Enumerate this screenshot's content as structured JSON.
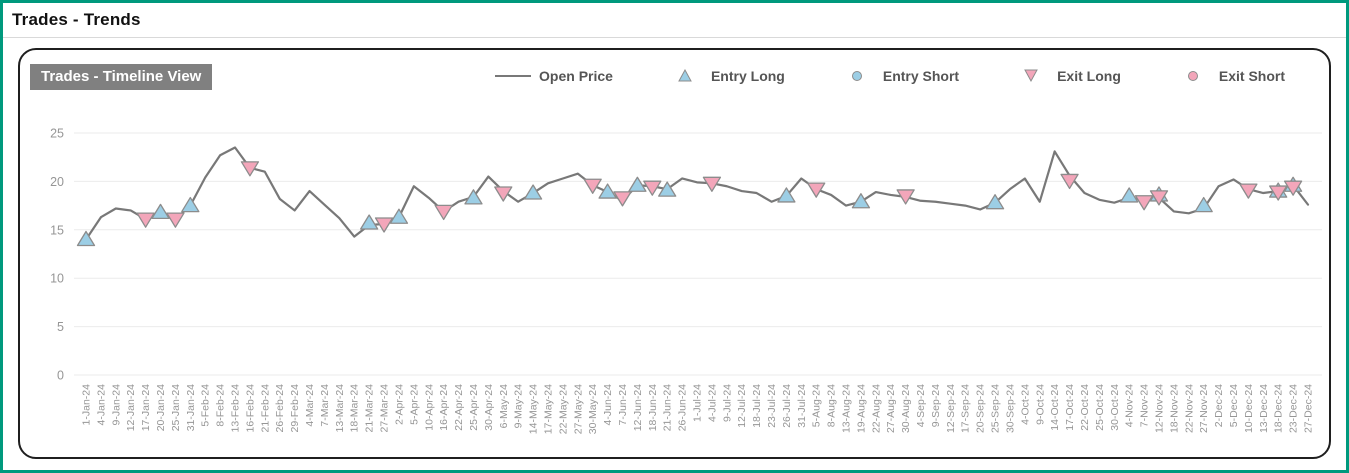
{
  "window": {
    "title": "Trades - Trends"
  },
  "panel": {
    "title": "Trades - Timeline View"
  },
  "legend": [
    {
      "label": "Open Price",
      "swatch": "line",
      "color": "#787878"
    },
    {
      "label": "Entry Long",
      "swatch": "triangle-up",
      "color": "#9cceе5"
    },
    {
      "label": "Entry Short",
      "swatch": "circle",
      "color": "#9ccee5"
    },
    {
      "label": "Exit Long",
      "swatch": "triangle-down",
      "color": "#f3a6ba"
    },
    {
      "label": "Exit Short",
      "swatch": "circle",
      "color": "#f3a6ba"
    }
  ],
  "colors": {
    "frame_border": "#00997d",
    "panel_border": "#1f1f1f",
    "badge_bg": "#808080",
    "badge_text": "#ffffff",
    "line": "#787878",
    "entry_fill": "#9ccee5",
    "exit_fill": "#f3a6ba",
    "marker_stroke": "#8c8c8c",
    "grid": "#ebebeb",
    "axis_text": "#969696",
    "legend_text": "#555555"
  },
  "chart_data": {
    "type": "line",
    "title": "Trades - Timeline View",
    "ylim": [
      0,
      25
    ],
    "yticks": [
      0,
      5,
      10,
      15,
      20,
      25
    ],
    "grid": "horizontal",
    "legend_position": "top",
    "x": [
      "1-Jan-24",
      "4-Jan-24",
      "9-Jan-24",
      "12-Jan-24",
      "17-Jan-24",
      "20-Jan-24",
      "25-Jan-24",
      "31-Jan-24",
      "5-Feb-24",
      "8-Feb-24",
      "13-Feb-24",
      "16-Feb-24",
      "21-Feb-24",
      "26-Feb-24",
      "29-Feb-24",
      "4-Mar-24",
      "7-Mar-24",
      "13-Mar-24",
      "18-Mar-24",
      "21-Mar-24",
      "27-Mar-24",
      "2-Apr-24",
      "5-Apr-24",
      "10-Apr-24",
      "16-Apr-24",
      "22-Apr-24",
      "25-Apr-24",
      "30-Apr-24",
      "6-May-24",
      "9-May-24",
      "14-May-24",
      "17-May-24",
      "22-May-24",
      "27-May-24",
      "30-May-24",
      "4-Jun-24",
      "7-Jun-24",
      "12-Jun-24",
      "18-Jun-24",
      "21-Jun-24",
      "26-Jun-24",
      "1-Jul-24",
      "4-Jul-24",
      "9-Jul-24",
      "12-Jul-24",
      "18-Jul-24",
      "23-Jul-24",
      "26-Jul-24",
      "31-Jul-24",
      "5-Aug-24",
      "8-Aug-24",
      "13-Aug-24",
      "19-Aug-24",
      "22-Aug-24",
      "27-Aug-24",
      "30-Aug-24",
      "4-Sep-24",
      "9-Sep-24",
      "12-Sep-24",
      "17-Sep-24",
      "20-Sep-24",
      "25-Sep-24",
      "30-Sep-24",
      "4-Oct-24",
      "9-Oct-24",
      "14-Oct-24",
      "17-Oct-24",
      "22-Oct-24",
      "25-Oct-24",
      "30-Oct-24",
      "4-Nov-24",
      "7-Nov-24",
      "12-Nov-24",
      "18-Nov-24",
      "22-Nov-24",
      "27-Nov-24",
      "2-Dec-24",
      "5-Dec-24",
      "10-Dec-24",
      "13-Dec-24",
      "18-Dec-24",
      "23-Dec-24",
      "27-Dec-24"
    ],
    "series": [
      {
        "name": "Open Price",
        "type": "line",
        "color": "#787878",
        "values": [
          14.0,
          16.3,
          17.2,
          17.0,
          16.1,
          16.7,
          16.1,
          17.5,
          20.4,
          22.7,
          23.5,
          21.4,
          21.0,
          18.2,
          17.0,
          19.0,
          17.6,
          16.2,
          14.3,
          15.5,
          15.6,
          16.3,
          19.5,
          18.3,
          16.9,
          17.9,
          18.4,
          20.5,
          19.0,
          17.9,
          18.8,
          19.8,
          20.3,
          20.8,
          19.6,
          18.9,
          18.0,
          19.6,
          19.5,
          19.2,
          20.3,
          19.9,
          19.8,
          19.5,
          19.0,
          18.8,
          17.9,
          18.5,
          20.3,
          19.2,
          18.6,
          17.5,
          17.9,
          18.9,
          18.6,
          18.4,
          18.0,
          17.9,
          17.7,
          17.5,
          17.1,
          17.8,
          19.2,
          20.3,
          17.9,
          23.1,
          20.6,
          18.8,
          18.1,
          17.8,
          18.3,
          18.1,
          18.3,
          16.9,
          16.7,
          17.2,
          19.5,
          20.2,
          19.2,
          18.8,
          19.0,
          19.6,
          17.6
        ]
      },
      {
        "name": "Entry Long",
        "type": "scatter",
        "marker": "triangle-up",
        "color": "#9ccee5",
        "points": [
          {
            "date": "1-Jan-24",
            "value": 14.0
          },
          {
            "date": "20-Jan-24",
            "value": 16.8
          },
          {
            "date": "31-Jan-24",
            "value": 17.5
          },
          {
            "date": "21-Mar-24",
            "value": 15.7
          },
          {
            "date": "2-Apr-24",
            "value": 16.3
          },
          {
            "date": "25-Apr-24",
            "value": 18.3
          },
          {
            "date": "14-May-24",
            "value": 18.8
          },
          {
            "date": "4-Jun-24",
            "value": 18.9
          },
          {
            "date": "12-Jun-24",
            "value": 19.6
          },
          {
            "date": "21-Jun-24",
            "value": 19.1
          },
          {
            "date": "26-Jul-24",
            "value": 18.5
          },
          {
            "date": "19-Aug-24",
            "value": 17.9
          },
          {
            "date": "25-Sep-24",
            "value": 17.8
          },
          {
            "date": "4-Nov-24",
            "value": 18.5
          },
          {
            "date": "12-Nov-24",
            "value": 18.6
          },
          {
            "date": "27-Nov-24",
            "value": 17.5
          },
          {
            "date": "18-Dec-24",
            "value": 19.0
          },
          {
            "date": "23-Dec-24",
            "value": 19.6
          }
        ]
      },
      {
        "name": "Entry Short",
        "type": "scatter",
        "marker": "circle",
        "color": "#9ccee5",
        "points": []
      },
      {
        "name": "Exit Long",
        "type": "scatter",
        "marker": "triangle-down",
        "color": "#f3a6ba",
        "points": [
          {
            "date": "17-Jan-24",
            "value": 16.1
          },
          {
            "date": "25-Jan-24",
            "value": 16.1
          },
          {
            "date": "16-Feb-24",
            "value": 21.4
          },
          {
            "date": "27-Mar-24",
            "value": 15.6
          },
          {
            "date": "16-Apr-24",
            "value": 16.9
          },
          {
            "date": "6-May-24",
            "value": 18.8
          },
          {
            "date": "30-May-24",
            "value": 19.6
          },
          {
            "date": "7-Jun-24",
            "value": 18.3
          },
          {
            "date": "18-Jun-24",
            "value": 19.4
          },
          {
            "date": "4-Jul-24",
            "value": 19.8
          },
          {
            "date": "5-Aug-24",
            "value": 19.2
          },
          {
            "date": "30-Aug-24",
            "value": 18.5
          },
          {
            "date": "17-Oct-24",
            "value": 20.1
          },
          {
            "date": "7-Nov-24",
            "value": 17.9
          },
          {
            "date": "12-Nov-24",
            "value": 18.4
          },
          {
            "date": "10-Dec-24",
            "value": 19.1
          },
          {
            "date": "18-Dec-24",
            "value": 18.9
          },
          {
            "date": "23-Dec-24",
            "value": 19.4
          }
        ]
      },
      {
        "name": "Exit Short",
        "type": "scatter",
        "marker": "circle",
        "color": "#f3a6ba",
        "points": []
      }
    ]
  }
}
